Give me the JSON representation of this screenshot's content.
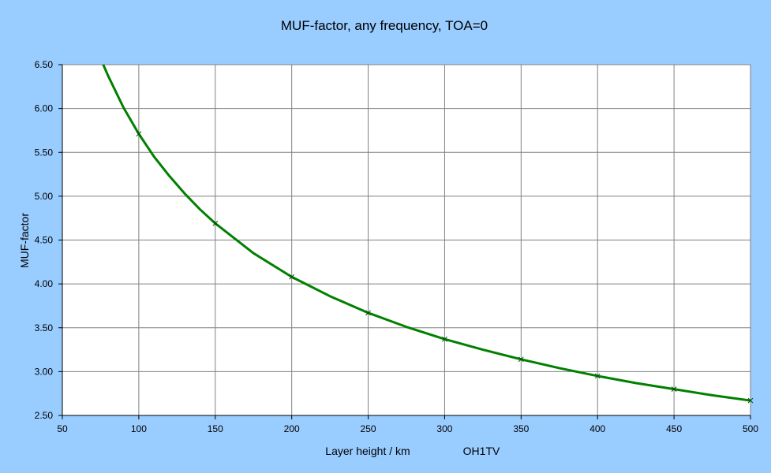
{
  "chart_data": {
    "type": "line",
    "title": "MUF-factor, any frequency, TOA=0",
    "xlabel": "Layer height  / km",
    "ylabel": "MUF-factor",
    "annotation": "OH1TV",
    "xlim": [
      50,
      500
    ],
    "ylim": [
      2.5,
      6.5
    ],
    "xticks": [
      "50",
      "100",
      "150",
      "200",
      "250",
      "300",
      "350",
      "400",
      "450",
      "500"
    ],
    "yticks": [
      "2.50",
      "3.00",
      "3.50",
      "4.00",
      "4.50",
      "5.00",
      "5.50",
      "6.00",
      "6.50"
    ],
    "grid": true,
    "legend": "none",
    "colors": {
      "background": "#99ccff",
      "plot": "#ffffff",
      "line": "#008000",
      "grid": "#808080"
    },
    "series": [
      {
        "line_x": [
          76,
          80,
          90,
          100,
          110,
          120,
          130,
          140,
          150,
          175,
          200,
          225,
          250,
          275,
          300,
          325,
          350,
          375,
          400,
          425,
          450,
          475,
          500
        ],
        "line_y": [
          6.53,
          6.37,
          6.01,
          5.71,
          5.45,
          5.23,
          5.03,
          4.85,
          4.69,
          4.35,
          4.08,
          3.86,
          3.67,
          3.51,
          3.37,
          3.25,
          3.14,
          3.04,
          2.95,
          2.87,
          2.8,
          2.73,
          2.67
        ],
        "markers_x": [
          100,
          150,
          200,
          250,
          300,
          350,
          400,
          450,
          500
        ],
        "markers_y": [
          5.71,
          4.69,
          4.08,
          3.67,
          3.37,
          3.14,
          2.95,
          2.8,
          2.67
        ]
      }
    ]
  }
}
